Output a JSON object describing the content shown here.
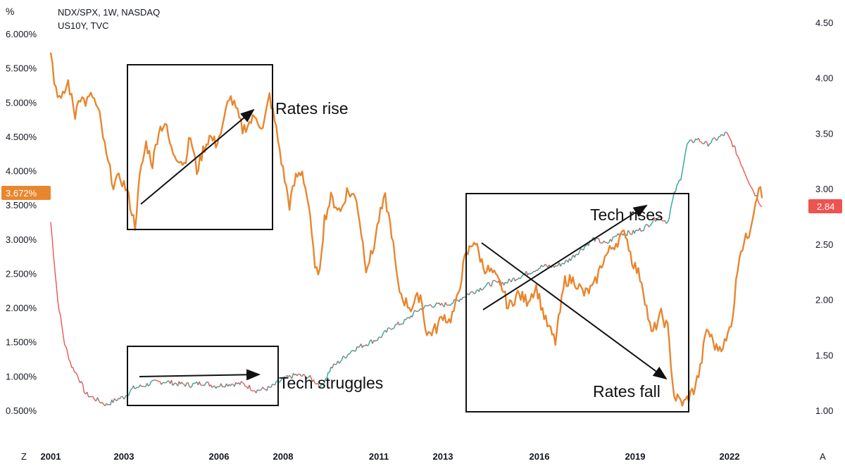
{
  "header": {
    "left_unit": "%",
    "series_1": "NDX/SPX, 1W, NASDAQ",
    "series_2": "US10Y, TVC"
  },
  "corner_buttons": {
    "left": "Z",
    "right": "A"
  },
  "colors": {
    "yield": "#e8862e",
    "ratio_up": "#26a69a",
    "ratio_down": "#ef5350",
    "ratio_badge": "#ef5350",
    "yield_badge": "#e8862e"
  },
  "chart_data": {
    "type": "line",
    "x_tick_labels": [
      "2001",
      "2003",
      "2006",
      "2008",
      "2011",
      "2013",
      "2016",
      "2019",
      "2022"
    ],
    "x_tick_years": [
      2001.0,
      2003.1,
      2006.1,
      2008.0,
      2011.0,
      2013.0,
      2016.1,
      2019.1,
      2022.0
    ],
    "xlim": [
      2001.0,
      2023.0
    ],
    "left_axis": {
      "labels": [
        "6.000%",
        "5.500%",
        "5.000%",
        "4.500%",
        "4.000%",
        "3.500%",
        "3.000%",
        "2.500%",
        "2.000%",
        "1.500%",
        "1.000%",
        "0.500%"
      ],
      "values": [
        6.0,
        5.5,
        5.0,
        4.5,
        4.0,
        3.5,
        3.0,
        2.5,
        2.0,
        1.5,
        1.0,
        0.5
      ],
      "ylim": [
        0.4,
        6.3
      ]
    },
    "right_axis": {
      "labels": [
        "4.50",
        "4.00",
        "3.50",
        "3.00",
        "2.50",
        "2.00",
        "1.50",
        "1.00"
      ],
      "values": [
        4.5,
        4.0,
        3.5,
        3.0,
        2.5,
        2.0,
        1.5,
        1.0
      ],
      "ylim": [
        0.95,
        4.6
      ]
    },
    "last_values": {
      "yield": "3.672%",
      "ratio": "2.84"
    },
    "series": [
      {
        "name": "US10Y, TVC",
        "axis": "left",
        "x": [
          2001.0,
          2001.1,
          2001.3,
          2001.5,
          2001.7,
          2001.8,
          2002.0,
          2002.2,
          2002.4,
          2002.6,
          2002.8,
          2003.0,
          2003.2,
          2003.45,
          2003.6,
          2003.8,
          2004.0,
          2004.2,
          2004.4,
          2004.6,
          2004.8,
          2005.0,
          2005.2,
          2005.4,
          2005.6,
          2005.8,
          2006.0,
          2006.2,
          2006.4,
          2006.6,
          2006.8,
          2007.0,
          2007.2,
          2007.4,
          2007.6,
          2007.8,
          2008.0,
          2008.2,
          2008.4,
          2008.6,
          2008.8,
          2008.95,
          2009.1,
          2009.3,
          2009.5,
          2009.8,
          2010.0,
          2010.3,
          2010.6,
          2010.8,
          2011.0,
          2011.2,
          2011.4,
          2011.6,
          2011.8,
          2012.0,
          2012.3,
          2012.5,
          2012.8,
          2013.0,
          2013.2,
          2013.4,
          2013.7,
          2014.0,
          2014.3,
          2014.6,
          2014.9,
          2015.1,
          2015.4,
          2015.7,
          2016.0,
          2016.3,
          2016.6,
          2016.9,
          2017.2,
          2017.5,
          2017.8,
          2018.1,
          2018.4,
          2018.8,
          2019.0,
          2019.3,
          2019.6,
          2019.9,
          2020.1,
          2020.2,
          2020.3,
          2020.6,
          2020.9,
          2021.1,
          2021.3,
          2021.6,
          2021.9,
          2022.1,
          2022.3,
          2022.6,
          2022.9,
          2023.0
        ],
        "y": [
          5.8,
          5.3,
          5.0,
          5.3,
          4.8,
          5.1,
          5.0,
          5.1,
          4.8,
          4.2,
          3.8,
          3.9,
          3.7,
          3.2,
          3.9,
          4.4,
          4.1,
          4.6,
          4.7,
          4.3,
          4.2,
          4.1,
          4.5,
          4.0,
          4.3,
          4.5,
          4.4,
          4.6,
          5.1,
          4.9,
          4.6,
          4.7,
          4.8,
          4.6,
          5.1,
          4.6,
          4.0,
          3.5,
          3.9,
          4.0,
          3.5,
          2.8,
          2.4,
          3.3,
          3.6,
          3.4,
          3.7,
          3.6,
          2.6,
          2.8,
          3.3,
          3.6,
          3.1,
          2.3,
          2.1,
          2.0,
          2.2,
          1.6,
          1.7,
          1.9,
          1.8,
          2.0,
          2.7,
          3.0,
          2.6,
          2.5,
          2.3,
          2.0,
          2.2,
          2.1,
          2.3,
          1.8,
          1.5,
          2.4,
          2.4,
          2.2,
          2.3,
          2.7,
          2.9,
          3.1,
          2.7,
          2.4,
          1.6,
          1.9,
          1.7,
          1.2,
          0.7,
          0.6,
          0.8,
          1.1,
          1.7,
          1.4,
          1.5,
          1.9,
          2.8,
          3.1,
          3.8,
          3.6
        ]
      },
      {
        "name": "NDX/SPX, 1W, NASDAQ",
        "axis": "right",
        "x": [
          2001.0,
          2001.2,
          2001.4,
          2001.6,
          2001.8,
          2002.0,
          2002.3,
          2002.6,
          2002.9,
          2003.1,
          2003.4,
          2003.7,
          2004.0,
          2004.4,
          2004.8,
          2005.2,
          2005.6,
          2006.0,
          2006.4,
          2006.8,
          2007.2,
          2007.6,
          2008.0,
          2008.4,
          2008.8,
          2009.2,
          2009.5,
          2009.8,
          2010.2,
          2010.6,
          2011.0,
          2011.4,
          2011.8,
          2012.2,
          2012.6,
          2013.0,
          2013.4,
          2013.8,
          2014.2,
          2014.6,
          2015.0,
          2015.4,
          2015.8,
          2016.2,
          2016.6,
          2017.0,
          2017.4,
          2017.8,
          2018.2,
          2018.6,
          2019.0,
          2019.4,
          2019.8,
          2020.1,
          2020.3,
          2020.5,
          2020.7,
          2021.0,
          2021.3,
          2021.6,
          2021.9,
          2022.1,
          2022.4,
          2022.7,
          2023.0
        ],
        "y": [
          2.7,
          2.0,
          1.6,
          1.4,
          1.3,
          1.15,
          1.1,
          1.05,
          1.1,
          1.12,
          1.2,
          1.22,
          1.25,
          1.26,
          1.24,
          1.23,
          1.25,
          1.22,
          1.24,
          1.24,
          1.18,
          1.2,
          1.28,
          1.32,
          1.3,
          1.22,
          1.38,
          1.45,
          1.55,
          1.6,
          1.65,
          1.75,
          1.8,
          1.9,
          1.95,
          1.95,
          1.98,
          2.05,
          2.1,
          2.15,
          2.15,
          2.2,
          2.25,
          2.3,
          2.3,
          2.35,
          2.45,
          2.55,
          2.5,
          2.6,
          2.6,
          2.65,
          2.75,
          2.7,
          2.95,
          3.1,
          3.4,
          3.45,
          3.4,
          3.45,
          3.5,
          3.4,
          3.2,
          3.0,
          2.84
        ]
      }
    ]
  },
  "annotations": {
    "rates_rise": "Rates rise",
    "tech_struggles": "Tech struggles",
    "tech_rises": "Tech rises",
    "rates_fall": "Rates fall"
  }
}
